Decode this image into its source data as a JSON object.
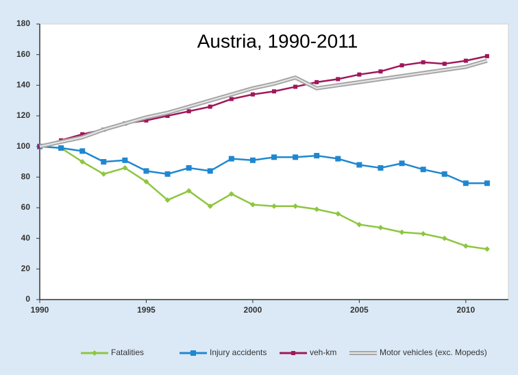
{
  "chart_data": {
    "type": "line",
    "title": "Austria, 1990-2011",
    "x": [
      1990,
      1991,
      1992,
      1993,
      1994,
      1995,
      1996,
      1997,
      1998,
      1999,
      2000,
      2001,
      2002,
      2003,
      2004,
      2005,
      2006,
      2007,
      2008,
      2009,
      2010,
      2011
    ],
    "series": [
      {
        "name": "Fatalities",
        "color": "#8dc63f",
        "values": [
          100,
          99,
          90,
          82,
          86,
          77,
          65,
          71,
          61,
          69,
          62,
          61,
          61,
          59,
          56,
          49,
          47,
          44,
          43,
          40,
          35,
          33
        ]
      },
      {
        "name": "Injury accidents",
        "color": "#1f87d0",
        "values": [
          100,
          99,
          97,
          90,
          91,
          84,
          82,
          86,
          84,
          92,
          91,
          93,
          93,
          94,
          92,
          88,
          86,
          89,
          85,
          82,
          76,
          76
        ]
      },
      {
        "name": "veh-km",
        "color": "#a0175a",
        "values": [
          100,
          104,
          108,
          111,
          115,
          117,
          120,
          123,
          126,
          131,
          134,
          136,
          139,
          142,
          144,
          147,
          149,
          153,
          155,
          154,
          156,
          159
        ]
      },
      {
        "name": "Motor vehicles (exc. Mopeds)",
        "color": "#a6a6a6",
        "values": [
          100,
          103,
          106,
          111,
          115,
          119,
          122,
          126,
          130,
          134,
          138,
          141,
          145,
          138,
          140,
          142,
          144,
          146,
          148,
          150,
          152,
          156
        ]
      }
    ],
    "xlim": [
      1990,
      2012
    ],
    "xticks": [
      1990,
      1995,
      2000,
      2005,
      2010
    ],
    "ylim": [
      0,
      180
    ],
    "yticks": [
      0,
      20,
      40,
      60,
      80,
      100,
      120,
      140,
      160,
      180
    ],
    "legend": "bottom"
  }
}
